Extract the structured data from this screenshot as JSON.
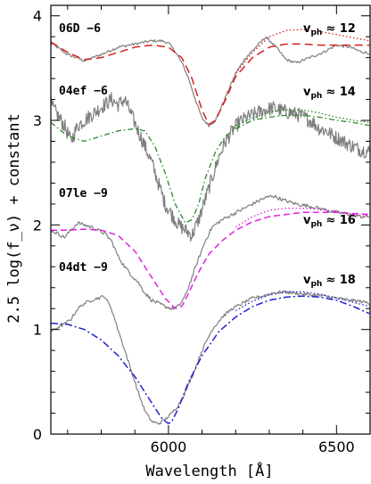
{
  "chart_data": {
    "type": "line",
    "xlabel": "Wavelength [Å]",
    "ylabel": "2.5 log(f_ν) + constant",
    "xlim": [
      5650,
      6600
    ],
    "ylim": [
      0,
      4.1
    ],
    "x_ticks": [
      6000,
      6500
    ],
    "y_ticks": [
      0,
      1,
      2,
      3,
      4
    ],
    "grid": false,
    "spectra": [
      {
        "name": "06D −6",
        "vph_symbol": "v",
        "vph_subscript": "ph",
        "vph_value": "≈ 12",
        "observed_color": "#7f7f7f",
        "model_color": "#d62020",
        "observed": {
          "x": [
            5650,
            5700,
            5750,
            5800,
            5850,
            5900,
            5950,
            5980,
            6000,
            6020,
            6040,
            6060,
            6080,
            6100,
            6120,
            6140,
            6160,
            6180,
            6200,
            6230,
            6260,
            6290,
            6320,
            6350,
            6380,
            6420,
            6460,
            6500,
            6540,
            6570,
            6600
          ],
          "y": [
            3.74,
            3.63,
            3.57,
            3.63,
            3.7,
            3.73,
            3.76,
            3.76,
            3.74,
            3.66,
            3.55,
            3.4,
            3.2,
            3.02,
            2.95,
            3.0,
            3.15,
            3.3,
            3.45,
            3.6,
            3.7,
            3.8,
            3.7,
            3.58,
            3.55,
            3.6,
            3.65,
            3.72,
            3.7,
            3.66,
            3.64
          ]
        },
        "model_dashed": {
          "x": [
            5650,
            5700,
            5750,
            5800,
            5850,
            5900,
            5950,
            6000,
            6040,
            6070,
            6100,
            6120,
            6140,
            6170,
            6200,
            6250,
            6300,
            6350,
            6400,
            6450,
            6500,
            6550,
            6600
          ],
          "y": [
            3.75,
            3.65,
            3.58,
            3.6,
            3.65,
            3.7,
            3.72,
            3.7,
            3.6,
            3.4,
            3.1,
            2.96,
            3.0,
            3.2,
            3.42,
            3.6,
            3.7,
            3.73,
            3.73,
            3.72,
            3.72,
            3.72,
            3.72
          ]
        },
        "model_dotted": {
          "x": [
            6200,
            6250,
            6300,
            6350,
            6400,
            6450,
            6500,
            6550,
            6600
          ],
          "y": [
            3.45,
            3.65,
            3.8,
            3.86,
            3.87,
            3.85,
            3.82,
            3.79,
            3.76
          ]
        }
      },
      {
        "name": "04ef −6",
        "vph_symbol": "v",
        "vph_subscript": "ph",
        "vph_value": "≈ 14",
        "observed_color": "#7f7f7f",
        "model_color": "#2a8a2a",
        "observed": {
          "x": [
            5650,
            5670,
            5690,
            5710,
            5730,
            5750,
            5770,
            5790,
            5810,
            5830,
            5850,
            5870,
            5890,
            5910,
            5930,
            5950,
            5970,
            5990,
            6010,
            6030,
            6050,
            6070,
            6090,
            6110,
            6130,
            6150,
            6170,
            6190,
            6210,
            6230,
            6250,
            6270,
            6290,
            6310,
            6330,
            6350,
            6370,
            6390,
            6410,
            6430,
            6450,
            6470,
            6490,
            6510,
            6530,
            6550,
            6570,
            6600
          ],
          "y": [
            3.15,
            3.05,
            2.95,
            2.8,
            2.95,
            3.0,
            3.05,
            3.1,
            3.15,
            3.2,
            3.15,
            3.2,
            3.05,
            2.9,
            2.75,
            2.6,
            2.4,
            2.2,
            2.1,
            2.0,
            1.95,
            1.9,
            2.05,
            2.25,
            2.45,
            2.65,
            2.8,
            2.9,
            2.98,
            3.02,
            3.05,
            3.08,
            3.1,
            3.12,
            3.1,
            3.08,
            3.07,
            3.05,
            3.02,
            2.98,
            2.92,
            2.9,
            2.85,
            2.82,
            2.78,
            2.75,
            2.72,
            2.7
          ]
        },
        "model_dashed": {
          "x": [
            5650,
            5700,
            5750,
            5800,
            5850,
            5900,
            5930,
            5960,
            5990,
            6020,
            6050,
            6070,
            6090,
            6110,
            6140,
            6170,
            6200,
            6250,
            6300,
            6350,
            6400,
            6450,
            6500,
            6550,
            6600
          ],
          "y": [
            2.98,
            2.85,
            2.8,
            2.85,
            2.9,
            2.92,
            2.9,
            2.75,
            2.5,
            2.2,
            2.02,
            2.05,
            2.2,
            2.45,
            2.7,
            2.85,
            2.92,
            3.0,
            3.03,
            3.05,
            3.05,
            3.03,
            3.0,
            2.98,
            2.95
          ]
        },
        "model_dotted": {
          "x": [
            6200,
            6250,
            6300,
            6350,
            6400,
            6450,
            6500,
            6550,
            6600
          ],
          "y": [
            2.95,
            3.02,
            3.08,
            3.1,
            3.1,
            3.07,
            3.03,
            3.0,
            2.98
          ]
        }
      },
      {
        "name": "07le −9",
        "vph_symbol": "v",
        "vph_subscript": "ph",
        "vph_value": "≈ 16",
        "observed_color": "#7f7f7f",
        "model_color": "#e020e0",
        "observed": {
          "x": [
            5650,
            5670,
            5690,
            5710,
            5730,
            5750,
            5770,
            5790,
            5810,
            5830,
            5850,
            5870,
            5890,
            5910,
            5930,
            5950,
            5970,
            5990,
            6010,
            6030,
            6050,
            6070,
            6090,
            6110,
            6130,
            6160,
            6190,
            6220,
            6250,
            6280,
            6310,
            6340,
            6380,
            6420,
            6460,
            6500,
            6540,
            6570,
            6600
          ],
          "y": [
            1.95,
            1.92,
            1.88,
            1.95,
            2.02,
            2.0,
            1.98,
            1.95,
            1.92,
            1.85,
            1.7,
            1.6,
            1.52,
            1.45,
            1.35,
            1.28,
            1.25,
            1.22,
            1.2,
            1.22,
            1.32,
            1.5,
            1.68,
            1.85,
            1.98,
            2.05,
            2.1,
            2.15,
            2.2,
            2.25,
            2.28,
            2.24,
            2.2,
            2.18,
            2.15,
            2.12,
            2.1,
            2.08,
            2.08
          ]
        },
        "model_dashed": {
          "x": [
            5650,
            5700,
            5750,
            5800,
            5850,
            5900,
            5950,
            5990,
            6020,
            6040,
            6060,
            6090,
            6120,
            6160,
            6200,
            6250,
            6300,
            6350,
            6400,
            6450,
            6500,
            6550,
            6600
          ],
          "y": [
            1.95,
            1.95,
            1.96,
            1.95,
            1.9,
            1.75,
            1.5,
            1.3,
            1.2,
            1.22,
            1.35,
            1.55,
            1.72,
            1.85,
            1.95,
            2.03,
            2.08,
            2.1,
            2.12,
            2.12,
            2.12,
            2.11,
            2.1
          ]
        },
        "model_dotted": {
          "x": [
            6200,
            6250,
            6300,
            6350,
            6400,
            6450,
            6500,
            6550,
            6600
          ],
          "y": [
            1.98,
            2.08,
            2.14,
            2.16,
            2.16,
            2.15,
            2.13,
            2.1,
            2.08
          ]
        }
      },
      {
        "name": "04dt −9",
        "vph_symbol": "v",
        "vph_subscript": "ph",
        "vph_value": "≈ 18",
        "observed_color": "#7f7f7f",
        "model_color": "#2020d0",
        "observed": {
          "x": [
            5650,
            5670,
            5690,
            5710,
            5730,
            5750,
            5770,
            5790,
            5810,
            5830,
            5850,
            5870,
            5890,
            5910,
            5930,
            5950,
            5970,
            5990,
            6010,
            6030,
            6050,
            6070,
            6100,
            6130,
            6160,
            6190,
            6220,
            6250,
            6280,
            6310,
            6340,
            6370,
            6400,
            6430,
            6460,
            6500,
            6540,
            6570,
            6600
          ],
          "y": [
            0.98,
            1.02,
            1.05,
            1.1,
            1.2,
            1.25,
            1.28,
            1.3,
            1.32,
            1.2,
            1.0,
            0.8,
            0.6,
            0.4,
            0.22,
            0.12,
            0.1,
            0.14,
            0.2,
            0.28,
            0.4,
            0.55,
            0.8,
            1.0,
            1.12,
            1.2,
            1.25,
            1.3,
            1.32,
            1.35,
            1.36,
            1.35,
            1.34,
            1.33,
            1.32,
            1.3,
            1.28,
            1.27,
            1.25
          ]
        },
        "model_dashed": {
          "x": [
            5650,
            5700,
            5750,
            5800,
            5850,
            5900,
            5950,
            5980,
            6000,
            6010,
            6030,
            6060,
            6100,
            6150,
            6200,
            6250,
            6300,
            6350,
            6400,
            6450,
            6500,
            6550,
            6600
          ],
          "y": [
            1.06,
            1.05,
            1.0,
            0.9,
            0.75,
            0.55,
            0.3,
            0.15,
            0.1,
            0.12,
            0.25,
            0.5,
            0.75,
            0.98,
            1.12,
            1.22,
            1.28,
            1.31,
            1.32,
            1.31,
            1.28,
            1.22,
            1.15
          ]
        },
        "model_dotted": {
          "x": [
            6200,
            6250,
            6300,
            6350,
            6400,
            6450,
            6500,
            6550,
            6600
          ],
          "y": [
            1.18,
            1.27,
            1.33,
            1.36,
            1.36,
            1.34,
            1.3,
            1.26,
            1.22
          ]
        }
      }
    ]
  }
}
